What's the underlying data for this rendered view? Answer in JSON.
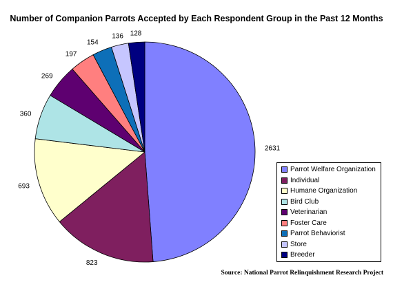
{
  "chart_data": {
    "type": "pie",
    "title": "Number of Companion Parrots Accepted by Each Respondent Group in the Past 12 Months",
    "legend_position": "bottom-right",
    "source": "Source: National Parrot Relinquishment Research Project",
    "slices": [
      {
        "label": "Parrot Welfare Organization",
        "value": 2631,
        "value_label": "2631",
        "color": "#8080ff"
      },
      {
        "label": "Individual",
        "value": 823,
        "value_label": "823",
        "color": "#7f1f5f"
      },
      {
        "label": "Humane Organization",
        "value": 693,
        "value_label": "693",
        "color": "#ffffcc"
      },
      {
        "label": "Bird Club",
        "value": 360,
        "value_label": "360",
        "color": "#aee4e6"
      },
      {
        "label": "Veterinarian",
        "value": 269,
        "value_label": "269",
        "color": "#5e0070"
      },
      {
        "label": "Foster Care",
        "value": 197,
        "value_label": "197",
        "color": "#ff7f7f"
      },
      {
        "label": "Parrot Behaviorist",
        "value": 154,
        "value_label": "154",
        "color": "#0d6fb8"
      },
      {
        "label": "Store",
        "value": 136,
        "value_label": "136",
        "color": "#c6c6ff"
      },
      {
        "label": "Breeder",
        "value": 128,
        "value_label": "128",
        "color": "#000080"
      }
    ]
  }
}
